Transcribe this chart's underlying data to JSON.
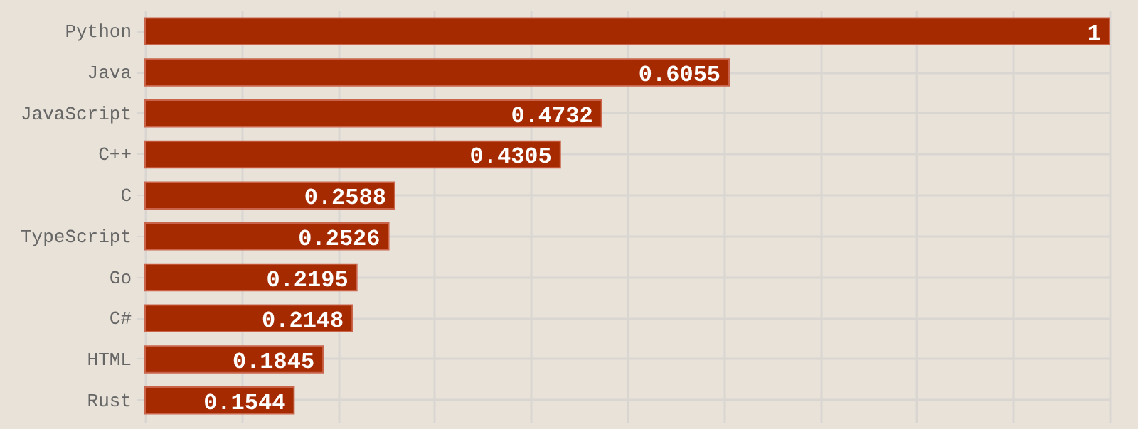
{
  "chart_data": {
    "type": "bar",
    "orientation": "horizontal",
    "categories": [
      "Python",
      "Java",
      "JavaScript",
      "C++",
      "C",
      "TypeScript",
      "Go",
      "C#",
      "HTML",
      "Rust"
    ],
    "values": [
      1,
      0.6055,
      0.4732,
      0.4305,
      0.2588,
      0.2526,
      0.2195,
      0.2148,
      0.1845,
      0.1544
    ],
    "color": "#a52a00",
    "xlim": [
      0,
      1
    ],
    "xticks": [
      0,
      0.1,
      0.2,
      0.3,
      0.4,
      0.5,
      0.6,
      0.7,
      0.8,
      0.9,
      1
    ],
    "tick_labels": "y",
    "grid": true,
    "data_labels": true
  }
}
